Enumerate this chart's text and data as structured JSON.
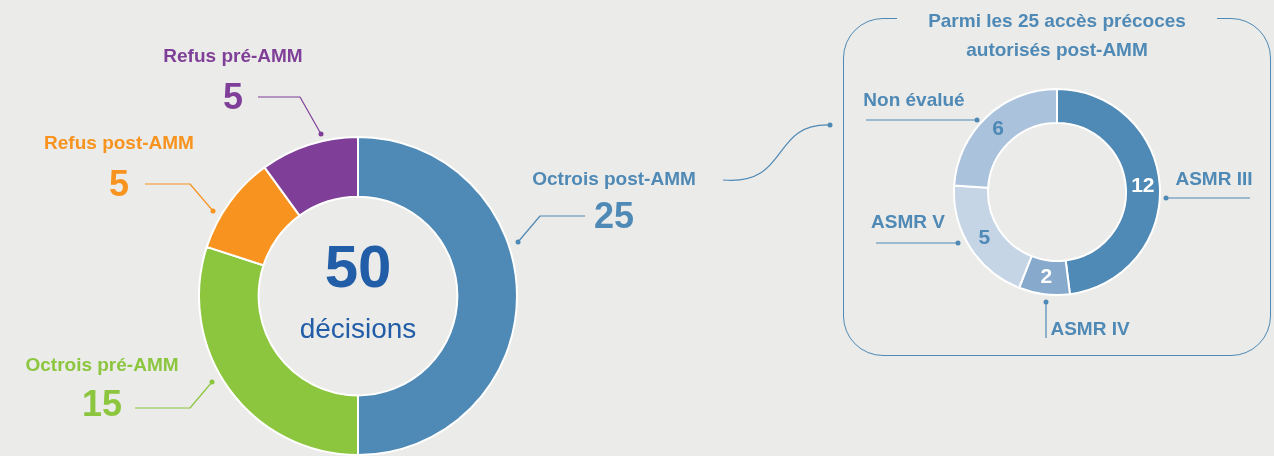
{
  "chart_data": [
    {
      "type": "donut",
      "categories": [
        "Octrois post-AMM",
        "Octrois pré-AMM",
        "Refus post-AMM",
        "Refus pré-AMM"
      ],
      "values": [
        25,
        15,
        5,
        5
      ],
      "colors": [
        "#4f89b5",
        "#8cc63f",
        "#f7931e",
        "#7f3f98"
      ],
      "data_labels": true,
      "annotations": [
        "50",
        "décisions"
      ]
    },
    {
      "type": "donut",
      "title": "Parmi les 25 accès précoces autorisés post-AMM",
      "categories": [
        "ASMR III",
        "ASMR IV",
        "ASMR V",
        "Non évalué"
      ],
      "values": [
        12,
        2,
        5,
        6
      ],
      "colors": [
        "#4f89b5",
        "#87a9cc",
        "#c5d5e6",
        "#abc2dc"
      ],
      "data_labels": true
    }
  ]
}
